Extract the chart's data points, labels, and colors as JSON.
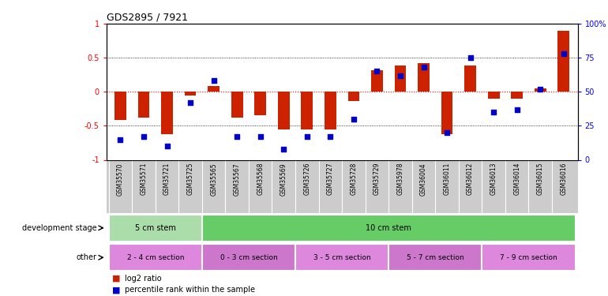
{
  "title": "GDS2895 / 7921",
  "samples": [
    "GSM35570",
    "GSM35571",
    "GSM35721",
    "GSM35725",
    "GSM35565",
    "GSM35567",
    "GSM35568",
    "GSM35569",
    "GSM35726",
    "GSM35727",
    "GSM35728",
    "GSM35729",
    "GSM35978",
    "GSM36004",
    "GSM36011",
    "GSM36012",
    "GSM36013",
    "GSM36014",
    "GSM36015",
    "GSM36016"
  ],
  "log2_ratio": [
    -0.42,
    -0.38,
    -0.62,
    -0.05,
    0.08,
    -0.38,
    -0.35,
    -0.55,
    -0.55,
    -0.55,
    -0.14,
    0.32,
    0.38,
    0.42,
    -0.62,
    0.38,
    -0.1,
    -0.1,
    0.05,
    0.9
  ],
  "percentile": [
    15,
    17,
    10,
    42,
    58,
    17,
    17,
    8,
    17,
    17,
    30,
    65,
    62,
    68,
    20,
    75,
    35,
    37,
    52,
    78
  ],
  "ylim": [
    -1.0,
    1.0
  ],
  "yticks": [
    -1.0,
    -0.5,
    0.0,
    0.5,
    1.0
  ],
  "ytick_labels_left": [
    "-1",
    "-0.5",
    "0",
    "0.5",
    "1"
  ],
  "ytick_labels_right": [
    "0",
    "25",
    "50",
    "75",
    "100%"
  ],
  "bar_color": "#cc2200",
  "square_color": "#0000cc",
  "bar_width": 0.5,
  "square_size": 18,
  "dev_stage_groups": [
    {
      "label": "5 cm stem",
      "start": 0,
      "end": 4,
      "color": "#aaddaa"
    },
    {
      "label": "10 cm stem",
      "start": 4,
      "end": 20,
      "color": "#66cc66"
    }
  ],
  "other_groups": [
    {
      "label": "2 - 4 cm section",
      "start": 0,
      "end": 4,
      "color": "#dd88dd"
    },
    {
      "label": "0 - 3 cm section",
      "start": 4,
      "end": 8,
      "color": "#cc77cc"
    },
    {
      "label": "3 - 5 cm section",
      "start": 8,
      "end": 12,
      "color": "#dd88dd"
    },
    {
      "label": "5 - 7 cm section",
      "start": 12,
      "end": 16,
      "color": "#cc77cc"
    },
    {
      "label": "7 - 9 cm section",
      "start": 16,
      "end": 20,
      "color": "#dd88dd"
    }
  ],
  "row_label_dev": "development stage",
  "row_label_other": "other",
  "legend_red": "log2 ratio",
  "legend_blue": "percentile rank within the sample",
  "xtick_bg": "#cccccc"
}
